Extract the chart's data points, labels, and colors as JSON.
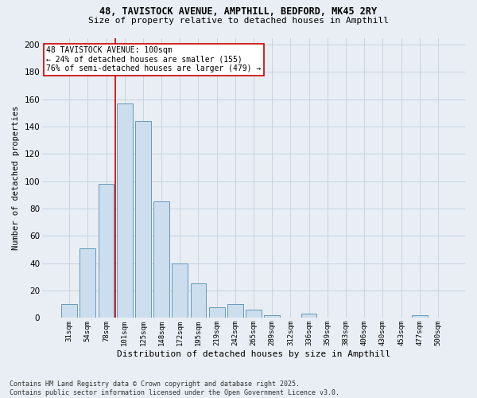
{
  "title1": "48, TAVISTOCK AVENUE, AMPTHILL, BEDFORD, MK45 2RY",
  "title2": "Size of property relative to detached houses in Ampthill",
  "xlabel": "Distribution of detached houses by size in Ampthill",
  "ylabel": "Number of detached properties",
  "footer1": "Contains HM Land Registry data © Crown copyright and database right 2025.",
  "footer2": "Contains public sector information licensed under the Open Government Licence v3.0.",
  "categories": [
    "31sqm",
    "54sqm",
    "78sqm",
    "101sqm",
    "125sqm",
    "148sqm",
    "172sqm",
    "195sqm",
    "219sqm",
    "242sqm",
    "265sqm",
    "289sqm",
    "312sqm",
    "336sqm",
    "359sqm",
    "383sqm",
    "406sqm",
    "430sqm",
    "453sqm",
    "477sqm",
    "500sqm"
  ],
  "values": [
    10,
    51,
    98,
    157,
    144,
    85,
    40,
    25,
    8,
    10,
    6,
    2,
    0,
    3,
    0,
    0,
    0,
    0,
    0,
    2,
    0
  ],
  "bar_color": "#ccdded",
  "bar_edge_color": "#6699bb",
  "vline_index": 3,
  "annotation_text": "48 TAVISTOCK AVENUE: 100sqm\n← 24% of detached houses are smaller (155)\n76% of semi-detached houses are larger (479) →",
  "annotation_box_color": "#ffffff",
  "annotation_box_edge": "#cc0000",
  "vline_color": "#cc0000",
  "grid_color": "#c8d4e0",
  "background_color": "#e8eef4",
  "plot_bg_color": "#e8eef4",
  "ylim": [
    0,
    205
  ],
  "yticks": [
    0,
    20,
    40,
    60,
    80,
    100,
    120,
    140,
    160,
    180,
    200
  ],
  "title1_fontsize": 8.5,
  "title2_fontsize": 8.0,
  "xlabel_fontsize": 8.0,
  "ylabel_fontsize": 7.5,
  "xtick_fontsize": 6.5,
  "ytick_fontsize": 7.5,
  "footer_fontsize": 6.0,
  "annot_fontsize": 7.0
}
